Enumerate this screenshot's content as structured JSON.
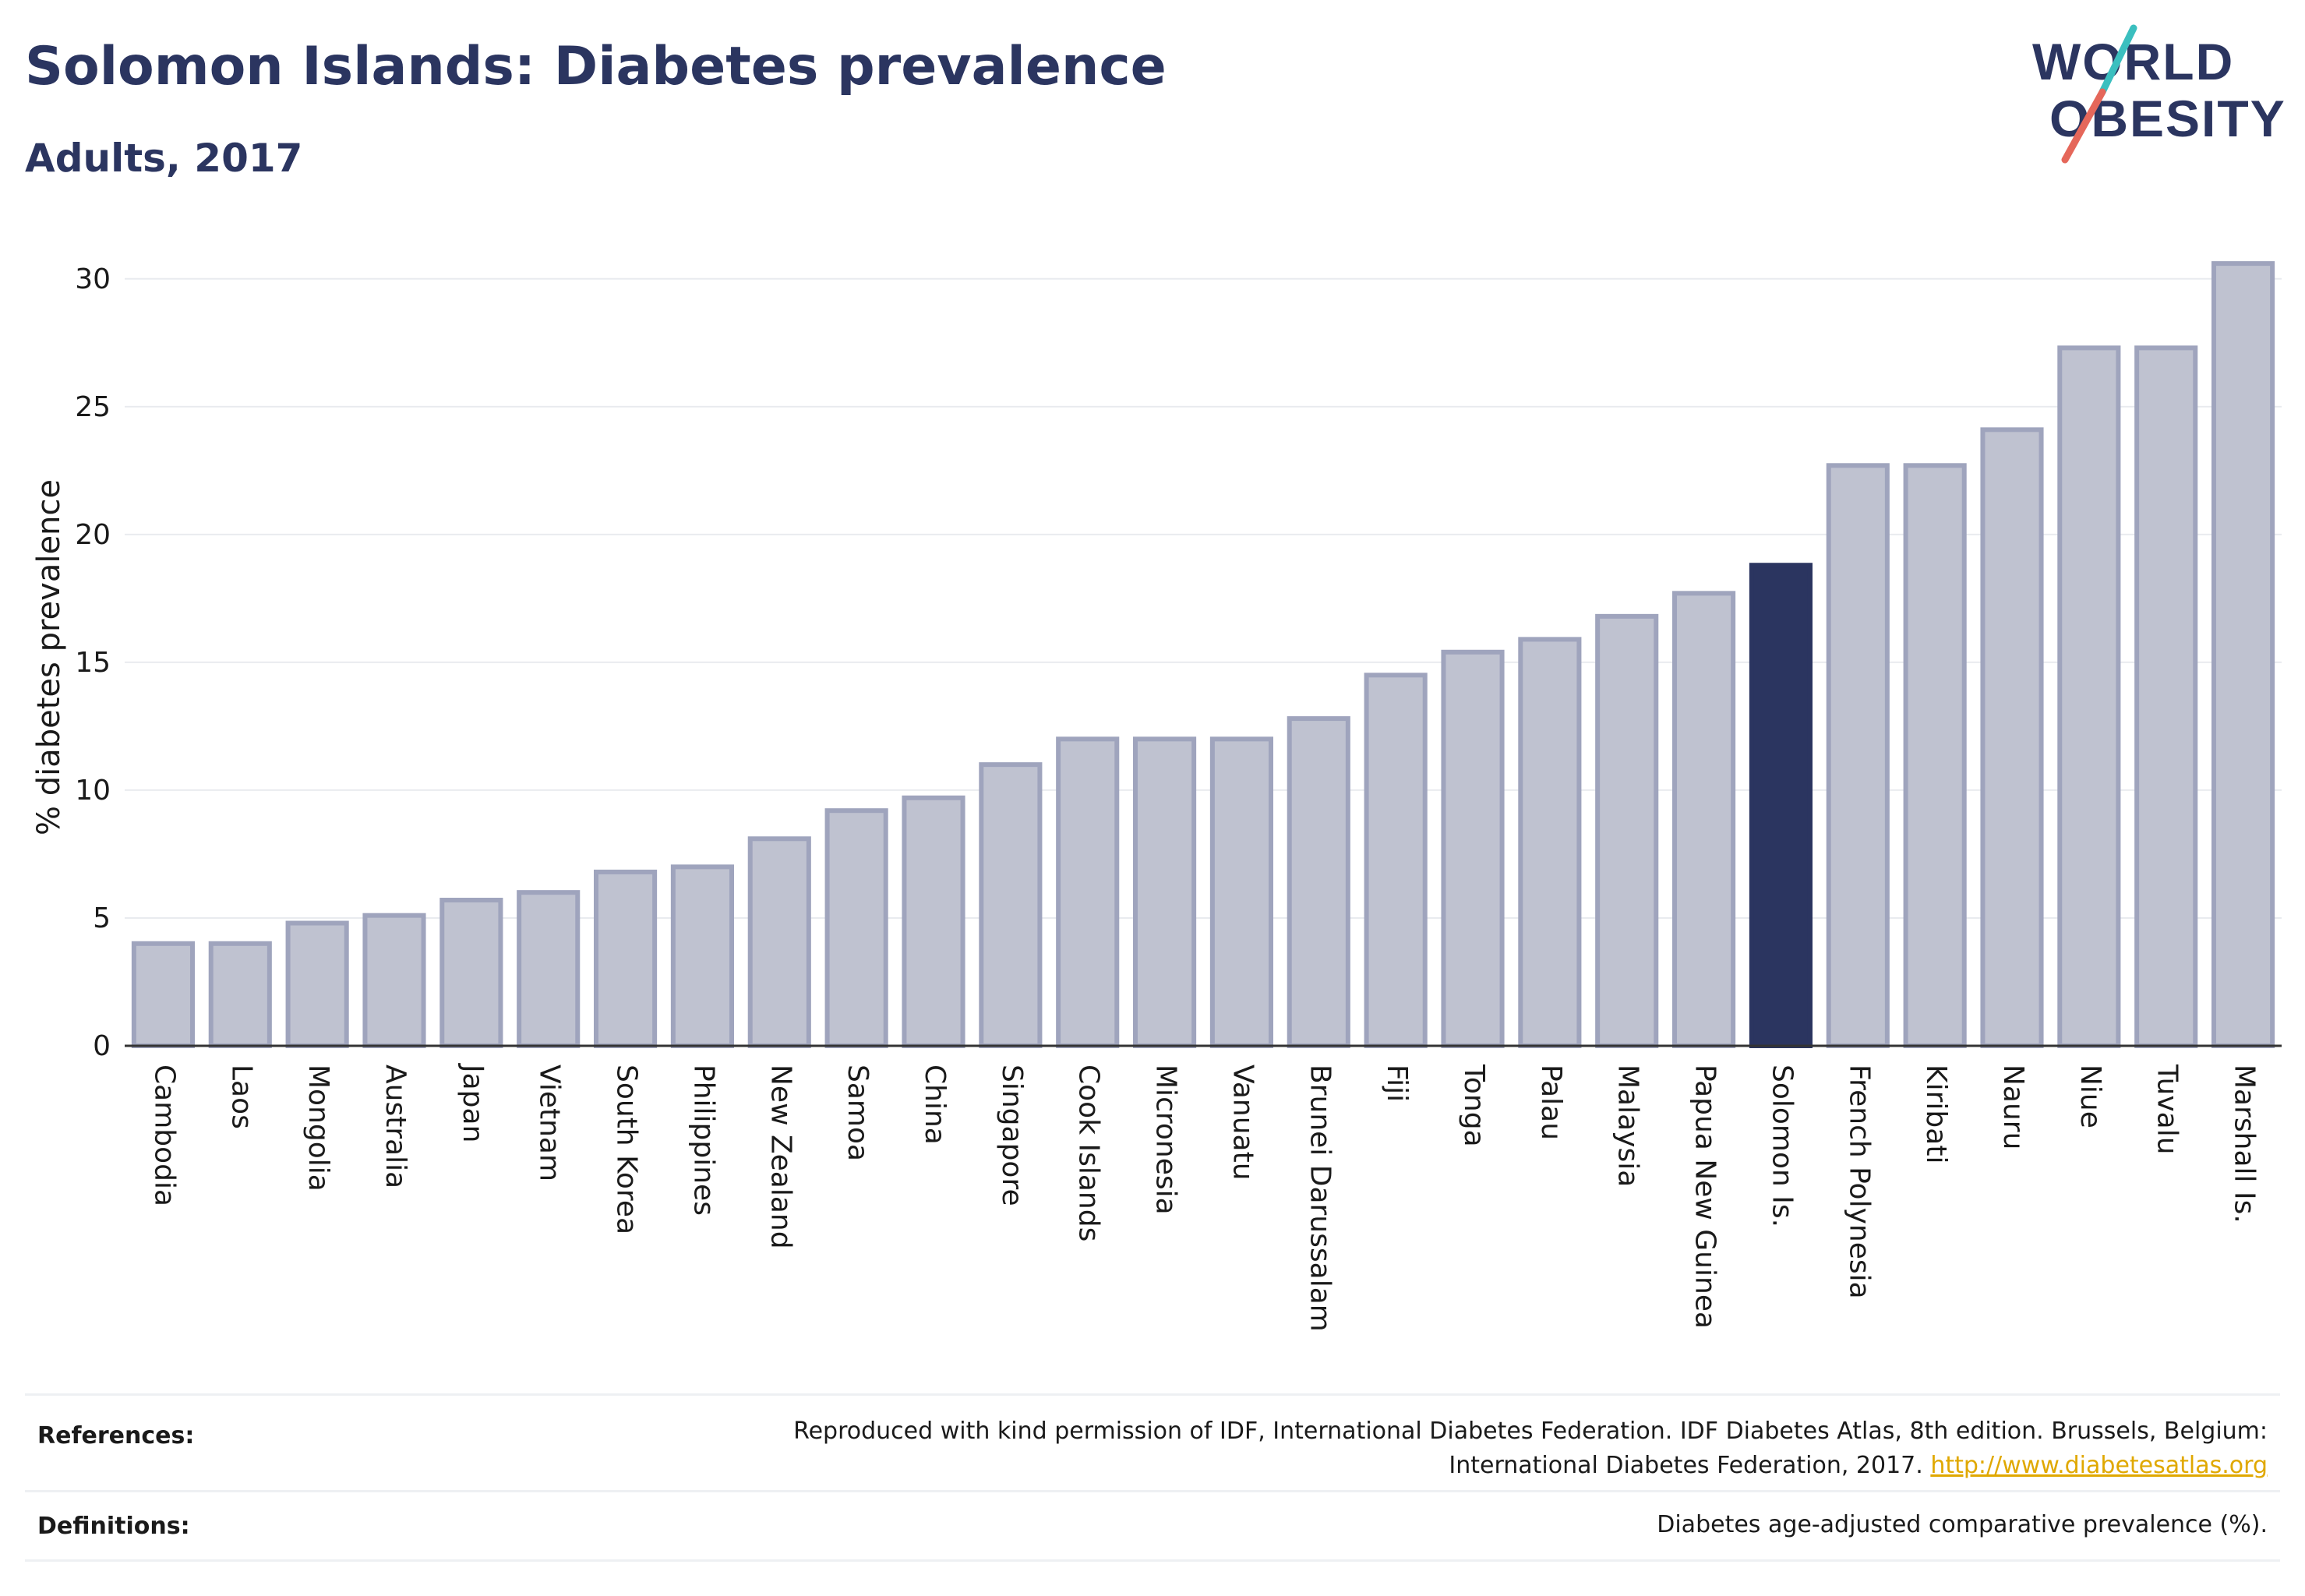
{
  "header": {
    "title": "Solomon Islands: Diabetes prevalence",
    "subtitle": "Adults, 2017"
  },
  "logo": {
    "line1": "WORLD",
    "line2": "OBESITY",
    "colors": {
      "text": "#2b3560",
      "slash_teal": "#3bbfbf",
      "slash_red": "#e5675a"
    }
  },
  "chart_data": {
    "type": "bar",
    "ylabel": "% diabetes prevalence",
    "xlabel": "",
    "ylim": [
      0,
      31
    ],
    "yticks": [
      0,
      5,
      10,
      15,
      20,
      25,
      30
    ],
    "grid": true,
    "highlight": "Solomon Is.",
    "categories": [
      "Cambodia",
      "Laos",
      "Mongolia",
      "Australia",
      "Japan",
      "Vietnam",
      "South Korea",
      "Philippines",
      "New Zealand",
      "Samoa",
      "China",
      "Singapore",
      "Cook Islands",
      "Micronesia",
      "Vanuatu",
      "Brunei Darussalam",
      "Fiji",
      "Tonga",
      "Palau",
      "Malaysia",
      "Papua New Guinea",
      "Solomon Is.",
      "French Polynesia",
      "Kiribati",
      "Nauru",
      "Niue",
      "Tuvalu",
      "Marshall Is."
    ],
    "values": [
      4.0,
      4.0,
      4.8,
      5.1,
      5.7,
      6.0,
      6.8,
      7.0,
      8.1,
      9.2,
      9.7,
      11.0,
      12.0,
      12.0,
      12.0,
      12.8,
      14.5,
      15.4,
      15.9,
      16.8,
      17.7,
      18.8,
      22.7,
      22.7,
      24.1,
      27.3,
      27.3,
      30.6
    ],
    "colors": {
      "bar": "#bfc2d0",
      "bar_border": "#9fa4bd",
      "highlight": "#2b3560",
      "grid": "#e9ebef",
      "axis": "#333333"
    }
  },
  "footer": {
    "references_label": "References:",
    "references_line1": "Reproduced with kind permission of IDF, International Diabetes Federation. IDF Diabetes Atlas, 8th edition. Brussels, Belgium:",
    "references_line2": "International Diabetes Federation, 2017.",
    "references_link": "http://www.diabetesatlas.org",
    "definitions_label": "Definitions:",
    "definitions_text": "Diabetes age-adjusted comparative prevalence (%)."
  }
}
